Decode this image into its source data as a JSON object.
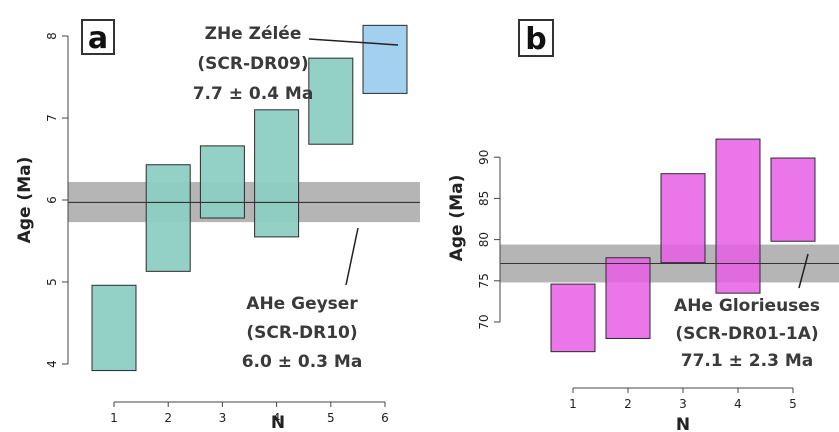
{
  "chart_data": [
    {
      "type": "bar",
      "panel": "a",
      "xlabel": "N",
      "ylabel": "Age (Ma)",
      "xticks": [
        1,
        2,
        3,
        4,
        5,
        6
      ],
      "yticks": [
        4,
        5,
        6,
        7,
        8
      ],
      "xlim": [
        0.5,
        6.5
      ],
      "ylim": [
        3.85,
        8.35
      ],
      "series": [
        {
          "x": 1,
          "low": 3.92,
          "high": 4.96,
          "color": "#8dcdc3"
        },
        {
          "x": 2,
          "low": 5.13,
          "high": 6.43,
          "color": "#8dcdc3"
        },
        {
          "x": 3,
          "low": 5.78,
          "high": 6.66,
          "color": "#8dcdc3"
        },
        {
          "x": 4,
          "low": 5.55,
          "high": 7.1,
          "color": "#8dcdc3"
        },
        {
          "x": 5,
          "low": 6.68,
          "high": 7.73,
          "color": "#8dcdc3"
        },
        {
          "x": 6,
          "low": 7.3,
          "high": 8.13,
          "color": "#9fcdee"
        }
      ],
      "mean_band": {
        "center": 5.97,
        "low": 5.73,
        "high": 6.22
      },
      "annotations": [
        {
          "lines": [
            "ZHe Zélée",
            "(SCR-DR09)",
            "7.7 ± 0.4 Ma"
          ]
        },
        {
          "lines": [
            "AHe Geyser",
            "(SCR-DR10)",
            "6.0 ± 0.3 Ma"
          ]
        }
      ]
    },
    {
      "type": "bar",
      "panel": "b",
      "xlabel": "N",
      "ylabel": "Age (Ma)",
      "xticks": [
        1,
        2,
        3,
        4,
        5
      ],
      "yticks": [
        70,
        75,
        80,
        85,
        90
      ],
      "xlim": [
        0.5,
        5.5
      ],
      "ylim": [
        65.5,
        93.0
      ],
      "series": [
        {
          "x": 1,
          "low": 66.4,
          "high": 74.6,
          "color": "#e65ee6"
        },
        {
          "x": 2,
          "low": 68.0,
          "high": 77.8,
          "color": "#e65ee6"
        },
        {
          "x": 3,
          "low": 77.2,
          "high": 88.0,
          "color": "#e65ee6"
        },
        {
          "x": 4,
          "low": 73.5,
          "high": 92.2,
          "color": "#e65ee6"
        },
        {
          "x": 5,
          "low": 79.8,
          "high": 89.9,
          "color": "#e65ee6"
        }
      ],
      "mean_band": {
        "center": 77.1,
        "low": 74.8,
        "high": 79.4
      },
      "annotations": [
        {
          "lines": [
            "AHe Glorieuses",
            "(SCR-DR01-1A)",
            "77.1 ± 2.3 Ma"
          ]
        }
      ]
    }
  ]
}
